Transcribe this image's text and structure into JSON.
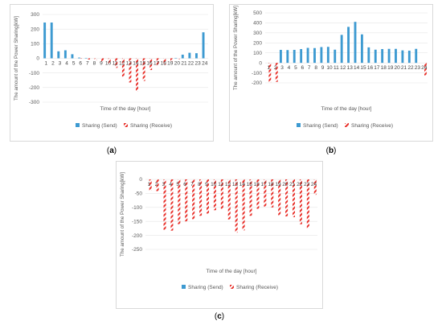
{
  "captions": {
    "a": "a",
    "b": "b",
    "c": "c"
  },
  "colors": {
    "send": "#3d9ad1",
    "receive": "#e8302a",
    "grid": "#e6e6e6",
    "axis_text": "#595959"
  },
  "chart_data": [
    {
      "id": "a",
      "type": "bar",
      "categories": [
        "1",
        "2",
        "3",
        "4",
        "5",
        "6",
        "7",
        "8",
        "9",
        "10",
        "11",
        "12",
        "13",
        "14",
        "15",
        "16",
        "17",
        "18",
        "19",
        "20",
        "21",
        "22",
        "23",
        "24"
      ],
      "ylabel": "The amount of the Power Sharing[kW]",
      "xlabel": "Time of the day [hour]",
      "ylim": [
        -300,
        300
      ],
      "yticks": [
        300,
        200,
        100,
        0,
        -100,
        -200,
        -300
      ],
      "grid": true,
      "legend_position": "bottom",
      "series": [
        {
          "name": "Sharing (Send)",
          "style": "solid",
          "values": [
            245,
            245,
            48,
            55,
            28,
            5,
            3,
            0,
            0,
            0,
            0,
            0,
            0,
            0,
            0,
            0,
            0,
            0,
            0,
            3,
            25,
            38,
            35,
            178
          ]
        },
        {
          "name": "Sharing (Receive)",
          "style": "hatched",
          "values": [
            0,
            0,
            0,
            0,
            0,
            -3,
            -8,
            -12,
            -25,
            -40,
            -65,
            -125,
            -165,
            -225,
            -155,
            -80,
            -50,
            -45,
            -22,
            -8,
            0,
            0,
            0,
            0
          ]
        }
      ]
    },
    {
      "id": "b",
      "type": "bar",
      "categories": [
        "1",
        "2",
        "3",
        "4",
        "5",
        "6",
        "7",
        "8",
        "9",
        "10",
        "11",
        "12",
        "13",
        "14",
        "15",
        "16",
        "17",
        "18",
        "19",
        "20",
        "21",
        "22",
        "23",
        "24"
      ],
      "ylabel": "The amount of the Power Sharing[kW]",
      "xlabel": "Time of the day [hour]",
      "ylim": [
        -200,
        500
      ],
      "yticks": [
        500,
        400,
        300,
        200,
        100,
        0,
        -100,
        -200
      ],
      "grid": true,
      "legend_position": "bottom",
      "series": [
        {
          "name": "Sharing (Send)",
          "style": "solid",
          "values": [
            0,
            0,
            130,
            128,
            130,
            138,
            150,
            148,
            158,
            160,
            132,
            280,
            360,
            410,
            285,
            155,
            132,
            138,
            140,
            140,
            125,
            122,
            140,
            0
          ]
        },
        {
          "name": "Sharing (Receive)",
          "style": "hatched",
          "values": [
            -195,
            -190,
            0,
            0,
            0,
            0,
            0,
            0,
            0,
            0,
            0,
            0,
            0,
            0,
            0,
            0,
            0,
            0,
            0,
            0,
            0,
            0,
            0,
            -125
          ]
        }
      ]
    },
    {
      "id": "c",
      "type": "bar",
      "categories": [
        "1",
        "2",
        "3",
        "4",
        "5",
        "6",
        "7",
        "8",
        "9",
        "10",
        "11",
        "12",
        "13",
        "14",
        "15",
        "16",
        "17",
        "18",
        "19",
        "20",
        "21",
        "22",
        "23",
        "24"
      ],
      "ylabel": "The amount of the Power Sharing[kW]",
      "xlabel": "Time of the day [hour]",
      "ylim": [
        -250,
        0
      ],
      "yticks": [
        0,
        -50,
        -100,
        -150,
        -200,
        -250
      ],
      "grid": true,
      "legend_position": "bottom",
      "series": [
        {
          "name": "Sharing (Send)",
          "style": "solid",
          "values": [
            0,
            0,
            0,
            0,
            0,
            0,
            0,
            0,
            0,
            0,
            0,
            0,
            0,
            0,
            0,
            0,
            0,
            0,
            0,
            0,
            0,
            0,
            0,
            0
          ]
        },
        {
          "name": "Sharing (Receive)",
          "style": "hatched",
          "values": [
            -40,
            -42,
            -180,
            -183,
            -160,
            -150,
            -142,
            -130,
            -122,
            -110,
            -105,
            -143,
            -190,
            -182,
            -130,
            -105,
            -97,
            -100,
            -128,
            -132,
            -135,
            -160,
            -175,
            -55
          ]
        }
      ]
    }
  ]
}
